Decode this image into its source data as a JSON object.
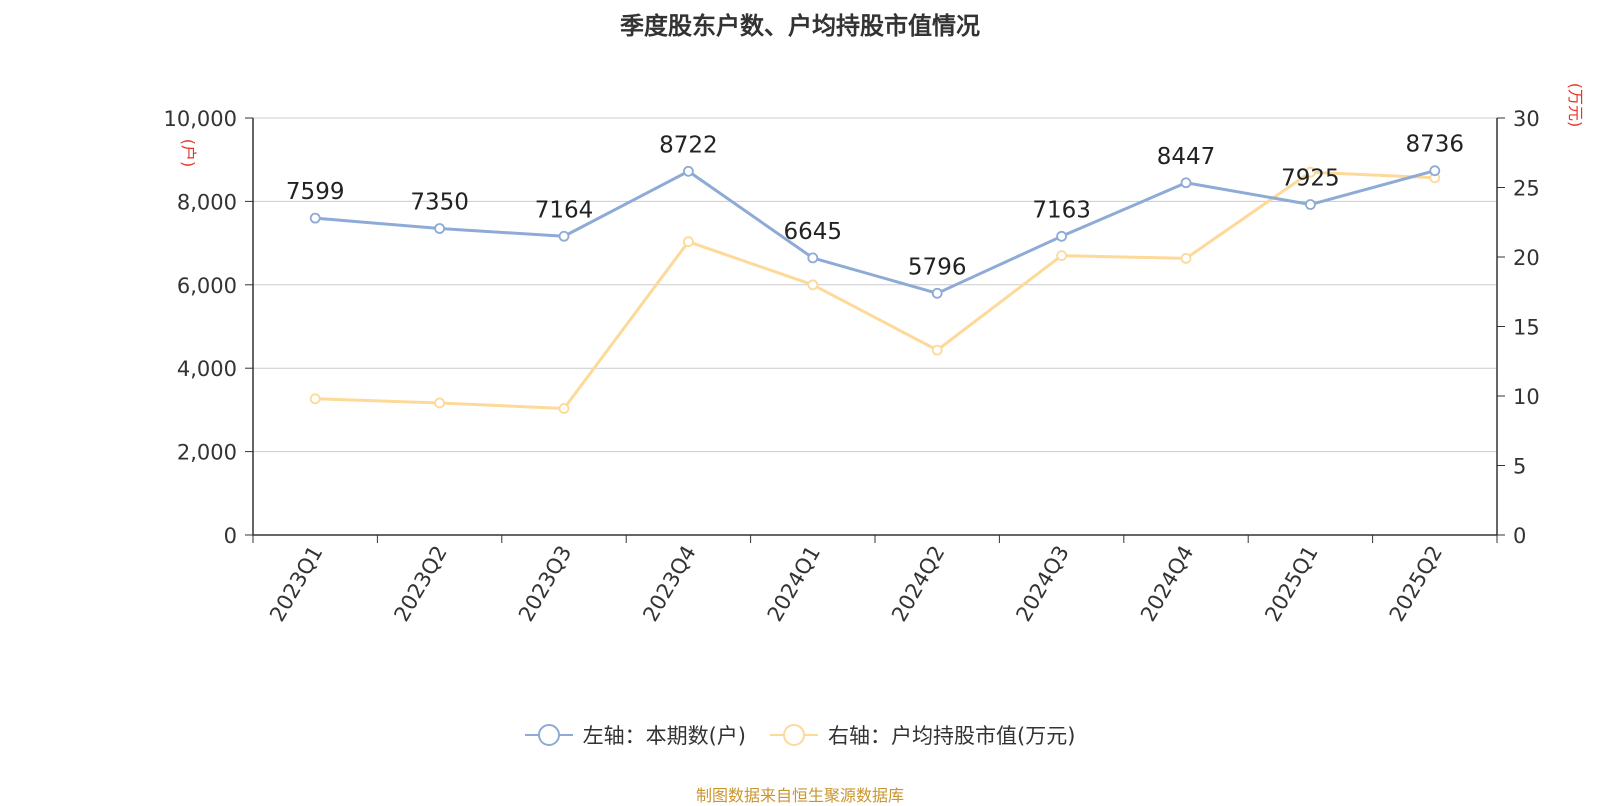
{
  "title": "季度股东户数、户均持股市值情况",
  "source": "制图数据来自恒生聚源数据库",
  "colors": {
    "left_series": "#8eaad6",
    "right_series": "#fdd99a",
    "axis_unit": "#e8342a",
    "source": "#c9952f"
  },
  "chart_data": {
    "type": "line",
    "categories": [
      "2023Q1",
      "2023Q2",
      "2023Q3",
      "2023Q4",
      "2024Q1",
      "2024Q2",
      "2024Q3",
      "2024Q4",
      "2025Q1",
      "2025Q2"
    ],
    "left_axis": {
      "unit": "(户)",
      "ylim": [
        0,
        10000
      ],
      "ticks": [
        "0",
        "2,000",
        "4,000",
        "6,000",
        "8,000",
        "10,000"
      ]
    },
    "right_axis": {
      "unit": "(万元)",
      "ylim": [
        0,
        30
      ],
      "ticks": [
        "0",
        "5",
        "10",
        "15",
        "20",
        "25",
        "30"
      ]
    },
    "grid": true,
    "legend_position": "bottom",
    "series": [
      {
        "name": "左轴：本期数(户)",
        "axis": "left",
        "values": [
          7599,
          7350,
          7164,
          8722,
          6645,
          5796,
          7163,
          8447,
          7925,
          8736
        ],
        "show_labels": true
      },
      {
        "name": "右轴：户均持股市值(万元)",
        "axis": "right",
        "values": [
          9.8,
          9.5,
          9.1,
          21.1,
          18.0,
          13.3,
          20.1,
          19.9,
          26.1,
          25.7
        ],
        "show_labels": false
      }
    ]
  }
}
